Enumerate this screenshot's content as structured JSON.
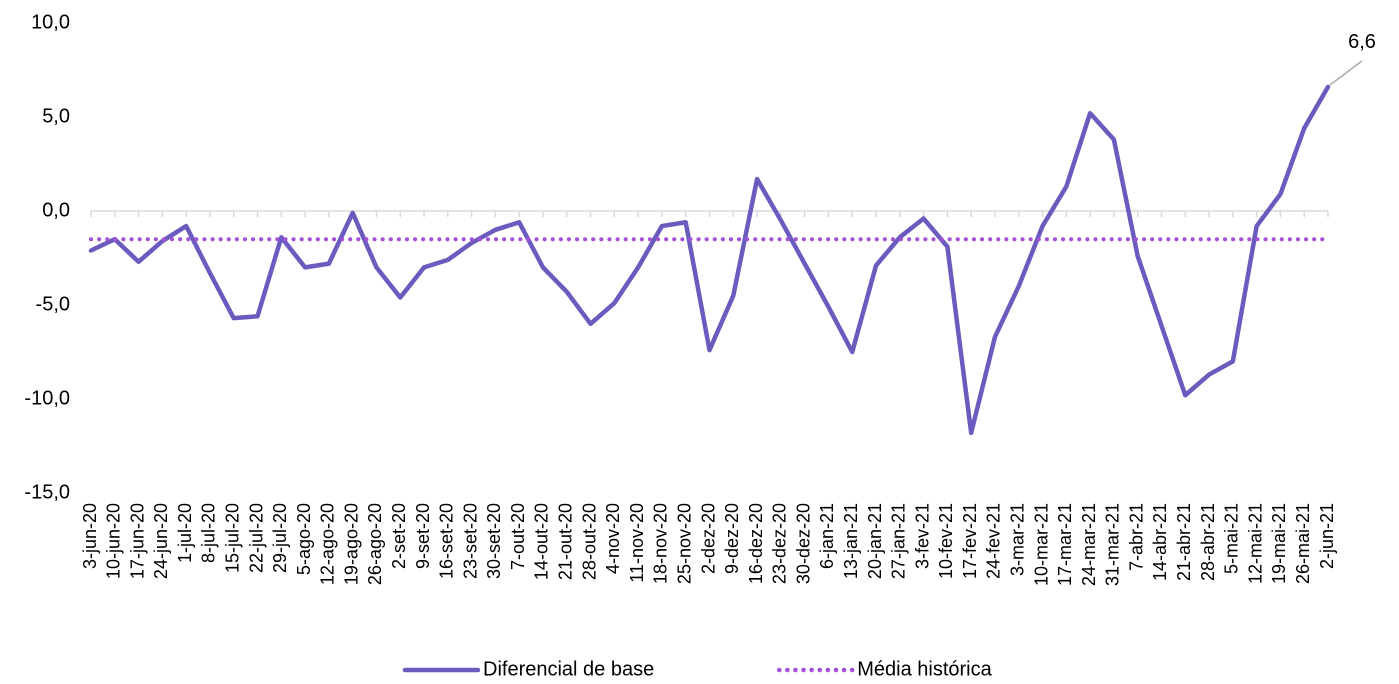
{
  "chart_data": {
    "type": "line",
    "categories": [
      "3-jun-20",
      "10-jun-20",
      "17-jun-20",
      "24-jun-20",
      "1-jul-20",
      "8-jul-20",
      "15-jul-20",
      "22-jul-20",
      "29-jul-20",
      "5-ago-20",
      "12-ago-20",
      "19-ago-20",
      "26-ago-20",
      "2-set-20",
      "9-set-20",
      "16-set-20",
      "23-set-20",
      "30-set-20",
      "7-out-20",
      "14-out-20",
      "21-out-20",
      "28-out-20",
      "4-nov-20",
      "11-nov-20",
      "18-nov-20",
      "25-nov-20",
      "2-dez-20",
      "9-dez-20",
      "16-dez-20",
      "23-dez-20",
      "30-dez-20",
      "6-jan-21",
      "13-jan-21",
      "20-jan-21",
      "27-jan-21",
      "3-fev-21",
      "10-fev-21",
      "17-fev-21",
      "24-fev-21",
      "3-mar-21",
      "10-mar-21",
      "17-mar-21",
      "24-mar-21",
      "31-mar-21",
      "7-abr-21",
      "14-abr-21",
      "21-abr-21",
      "28-abr-21",
      "5-mai-21",
      "12-mai-21",
      "19-mai-21",
      "26-mai-21",
      "2-jun-21"
    ],
    "series": [
      {
        "name": "Diferencial de base",
        "color": "#6a5bbf",
        "style": "solid",
        "values": [
          -2.1,
          -1.5,
          -2.7,
          -1.6,
          -0.8,
          -3.3,
          -5.7,
          -5.6,
          -1.4,
          -3.0,
          -2.8,
          -0.1,
          -3.0,
          -4.6,
          -3.0,
          -2.6,
          -1.7,
          -1.0,
          -0.6,
          -3.0,
          -4.3,
          -6.0,
          -4.9,
          -3.0,
          -0.8,
          -0.6,
          -7.4,
          -4.5,
          1.7,
          -0.5,
          -2.8,
          -5.1,
          -7.5,
          -2.9,
          -1.4,
          -0.4,
          -1.9,
          -11.8,
          -6.7,
          -4.0,
          -0.8,
          1.3,
          5.2,
          3.8,
          -2.4,
          -6.1,
          -9.8,
          -8.7,
          -8.0,
          -0.8,
          0.9,
          4.4,
          6.6
        ],
        "value_labels": [
          null,
          null,
          null,
          null,
          null,
          null,
          null,
          null,
          null,
          null,
          null,
          null,
          null,
          null,
          null,
          null,
          null,
          null,
          null,
          null,
          null,
          null,
          null,
          null,
          null,
          null,
          null,
          null,
          null,
          null,
          null,
          null,
          null,
          null,
          null,
          null,
          null,
          null,
          null,
          null,
          null,
          null,
          null,
          null,
          null,
          null,
          null,
          null,
          null,
          null,
          null,
          null,
          "6,6"
        ]
      },
      {
        "name": "Média histórica",
        "color": "#a54fd6",
        "style": "dotted",
        "values": [
          -1.5,
          -1.5,
          -1.5,
          -1.5,
          -1.5,
          -1.5,
          -1.5,
          -1.5,
          -1.5,
          -1.5,
          -1.5,
          -1.5,
          -1.5,
          -1.5,
          -1.5,
          -1.5,
          -1.5,
          -1.5,
          -1.5,
          -1.5,
          -1.5,
          -1.5,
          -1.5,
          -1.5,
          -1.5,
          -1.5,
          -1.5,
          -1.5,
          -1.5,
          -1.5,
          -1.5,
          -1.5,
          -1.5,
          -1.5,
          -1.5,
          -1.5,
          -1.5,
          -1.5,
          -1.5,
          -1.5,
          -1.5,
          -1.5,
          -1.5,
          -1.5,
          -1.5,
          -1.5,
          -1.5,
          -1.5,
          -1.5,
          -1.5,
          -1.5,
          -1.5,
          -1.5
        ]
      }
    ],
    "ylim": [
      -15,
      10
    ],
    "yticks": [
      {
        "value": 10,
        "label": "10,0"
      },
      {
        "value": 5,
        "label": "5,0"
      },
      {
        "value": 0,
        "label": "0,0"
      },
      {
        "value": -5,
        "label": "-5,0"
      },
      {
        "value": -10,
        "label": "-10,0"
      },
      {
        "value": -15,
        "label": "-15,0"
      }
    ],
    "grid": false,
    "legend": "bottom"
  }
}
